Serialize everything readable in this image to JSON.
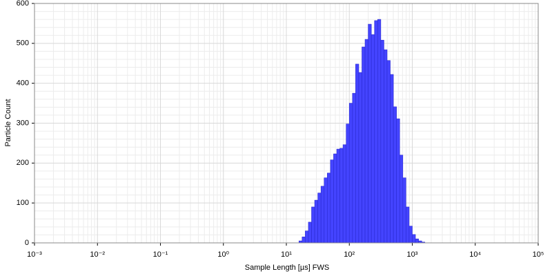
{
  "chart_data": {
    "type": "histogram",
    "xlabel": "Sample Length [µs] FWS",
    "ylabel": "Particle Count",
    "xscale": "log",
    "grid": true,
    "color": "#4444ff",
    "xlim": [
      0.001,
      100000
    ],
    "ylim": [
      0,
      600
    ],
    "xticks": [
      {
        "value": 0.001,
        "label": "10⁻³"
      },
      {
        "value": 0.01,
        "label": "10⁻²"
      },
      {
        "value": 0.1,
        "label": "10⁻¹"
      },
      {
        "value": 1,
        "label": "10⁰"
      },
      {
        "value": 10,
        "label": "10¹"
      },
      {
        "value": 100,
        "label": "10²"
      },
      {
        "value": 1000,
        "label": "10³"
      },
      {
        "value": 10000,
        "label": "10⁴"
      },
      {
        "value": 100000,
        "label": "10⁵"
      }
    ],
    "yticks": [
      0,
      100,
      200,
      300,
      400,
      500,
      600
    ],
    "bins": [
      15.85,
      17.78,
      19.95,
      22.39,
      25.12,
      28.18,
      31.62,
      35.48,
      39.81,
      44.67,
      50.12,
      56.23,
      63.1,
      70.79,
      79.43,
      89.13,
      100,
      112.2,
      125.9,
      141.3,
      158.5,
      177.8,
      199.5,
      223.9,
      251.2,
      281.8,
      316.2,
      354.8,
      398.1,
      446.7,
      501.2,
      562.3,
      631,
      707.9,
      794.3,
      891.3,
      1000,
      1122,
      1259,
      1413,
      1585
    ],
    "values": [
      5,
      15,
      30,
      52,
      90,
      107,
      125,
      142,
      163,
      175,
      208,
      223,
      235,
      237,
      246,
      298,
      350,
      375,
      448,
      427,
      491,
      510,
      548,
      522,
      557,
      560,
      508,
      484,
      457,
      422,
      341,
      311,
      220,
      163,
      90,
      42,
      21,
      10,
      5,
      2
    ]
  }
}
